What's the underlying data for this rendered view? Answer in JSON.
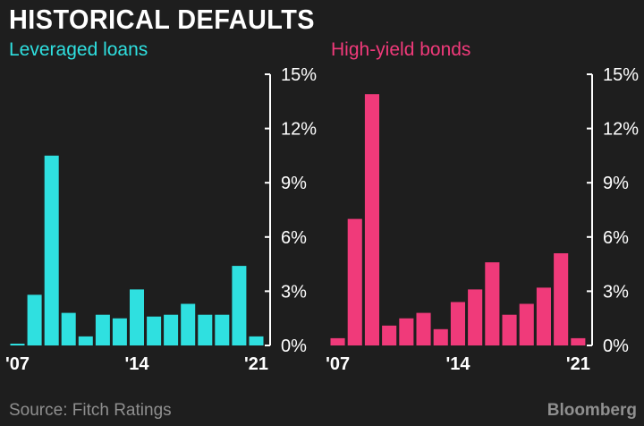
{
  "title": "HISTORICAL DEFAULTS",
  "source": "Source: Fitch Ratings",
  "brand": "Bloomberg",
  "chart_data": [
    {
      "type": "bar",
      "title": "Leveraged loans",
      "color": "#2fe0e0",
      "years": [
        2007,
        2008,
        2009,
        2010,
        2011,
        2012,
        2013,
        2014,
        2015,
        2016,
        2017,
        2018,
        2019,
        2020,
        2021
      ],
      "xtick_labels": [
        "'07",
        "'14",
        "'21"
      ],
      "values": [
        0.1,
        2.8,
        10.5,
        1.8,
        0.5,
        1.7,
        1.5,
        3.1,
        1.6,
        1.7,
        2.3,
        1.7,
        1.7,
        4.4,
        0.5
      ],
      "ylim": [
        0,
        15
      ],
      "yticks": [
        "0%",
        "3%",
        "6%",
        "9%",
        "12%",
        "15%"
      ],
      "y_axis_position": "right"
    },
    {
      "type": "bar",
      "title": "High-yield bonds",
      "color": "#f03a7a",
      "years": [
        2007,
        2008,
        2009,
        2010,
        2011,
        2012,
        2013,
        2014,
        2015,
        2016,
        2017,
        2018,
        2019,
        2020,
        2021
      ],
      "xtick_labels": [
        "'07",
        "'14",
        "'21"
      ],
      "values": [
        0.4,
        7.0,
        13.9,
        1.1,
        1.5,
        1.8,
        0.9,
        2.4,
        3.1,
        4.6,
        1.7,
        2.3,
        3.2,
        5.1,
        0.4
      ],
      "ylim": [
        0,
        15
      ],
      "yticks": [
        "0%",
        "3%",
        "6%",
        "9%",
        "12%",
        "15%"
      ],
      "y_axis_position": "right"
    }
  ]
}
